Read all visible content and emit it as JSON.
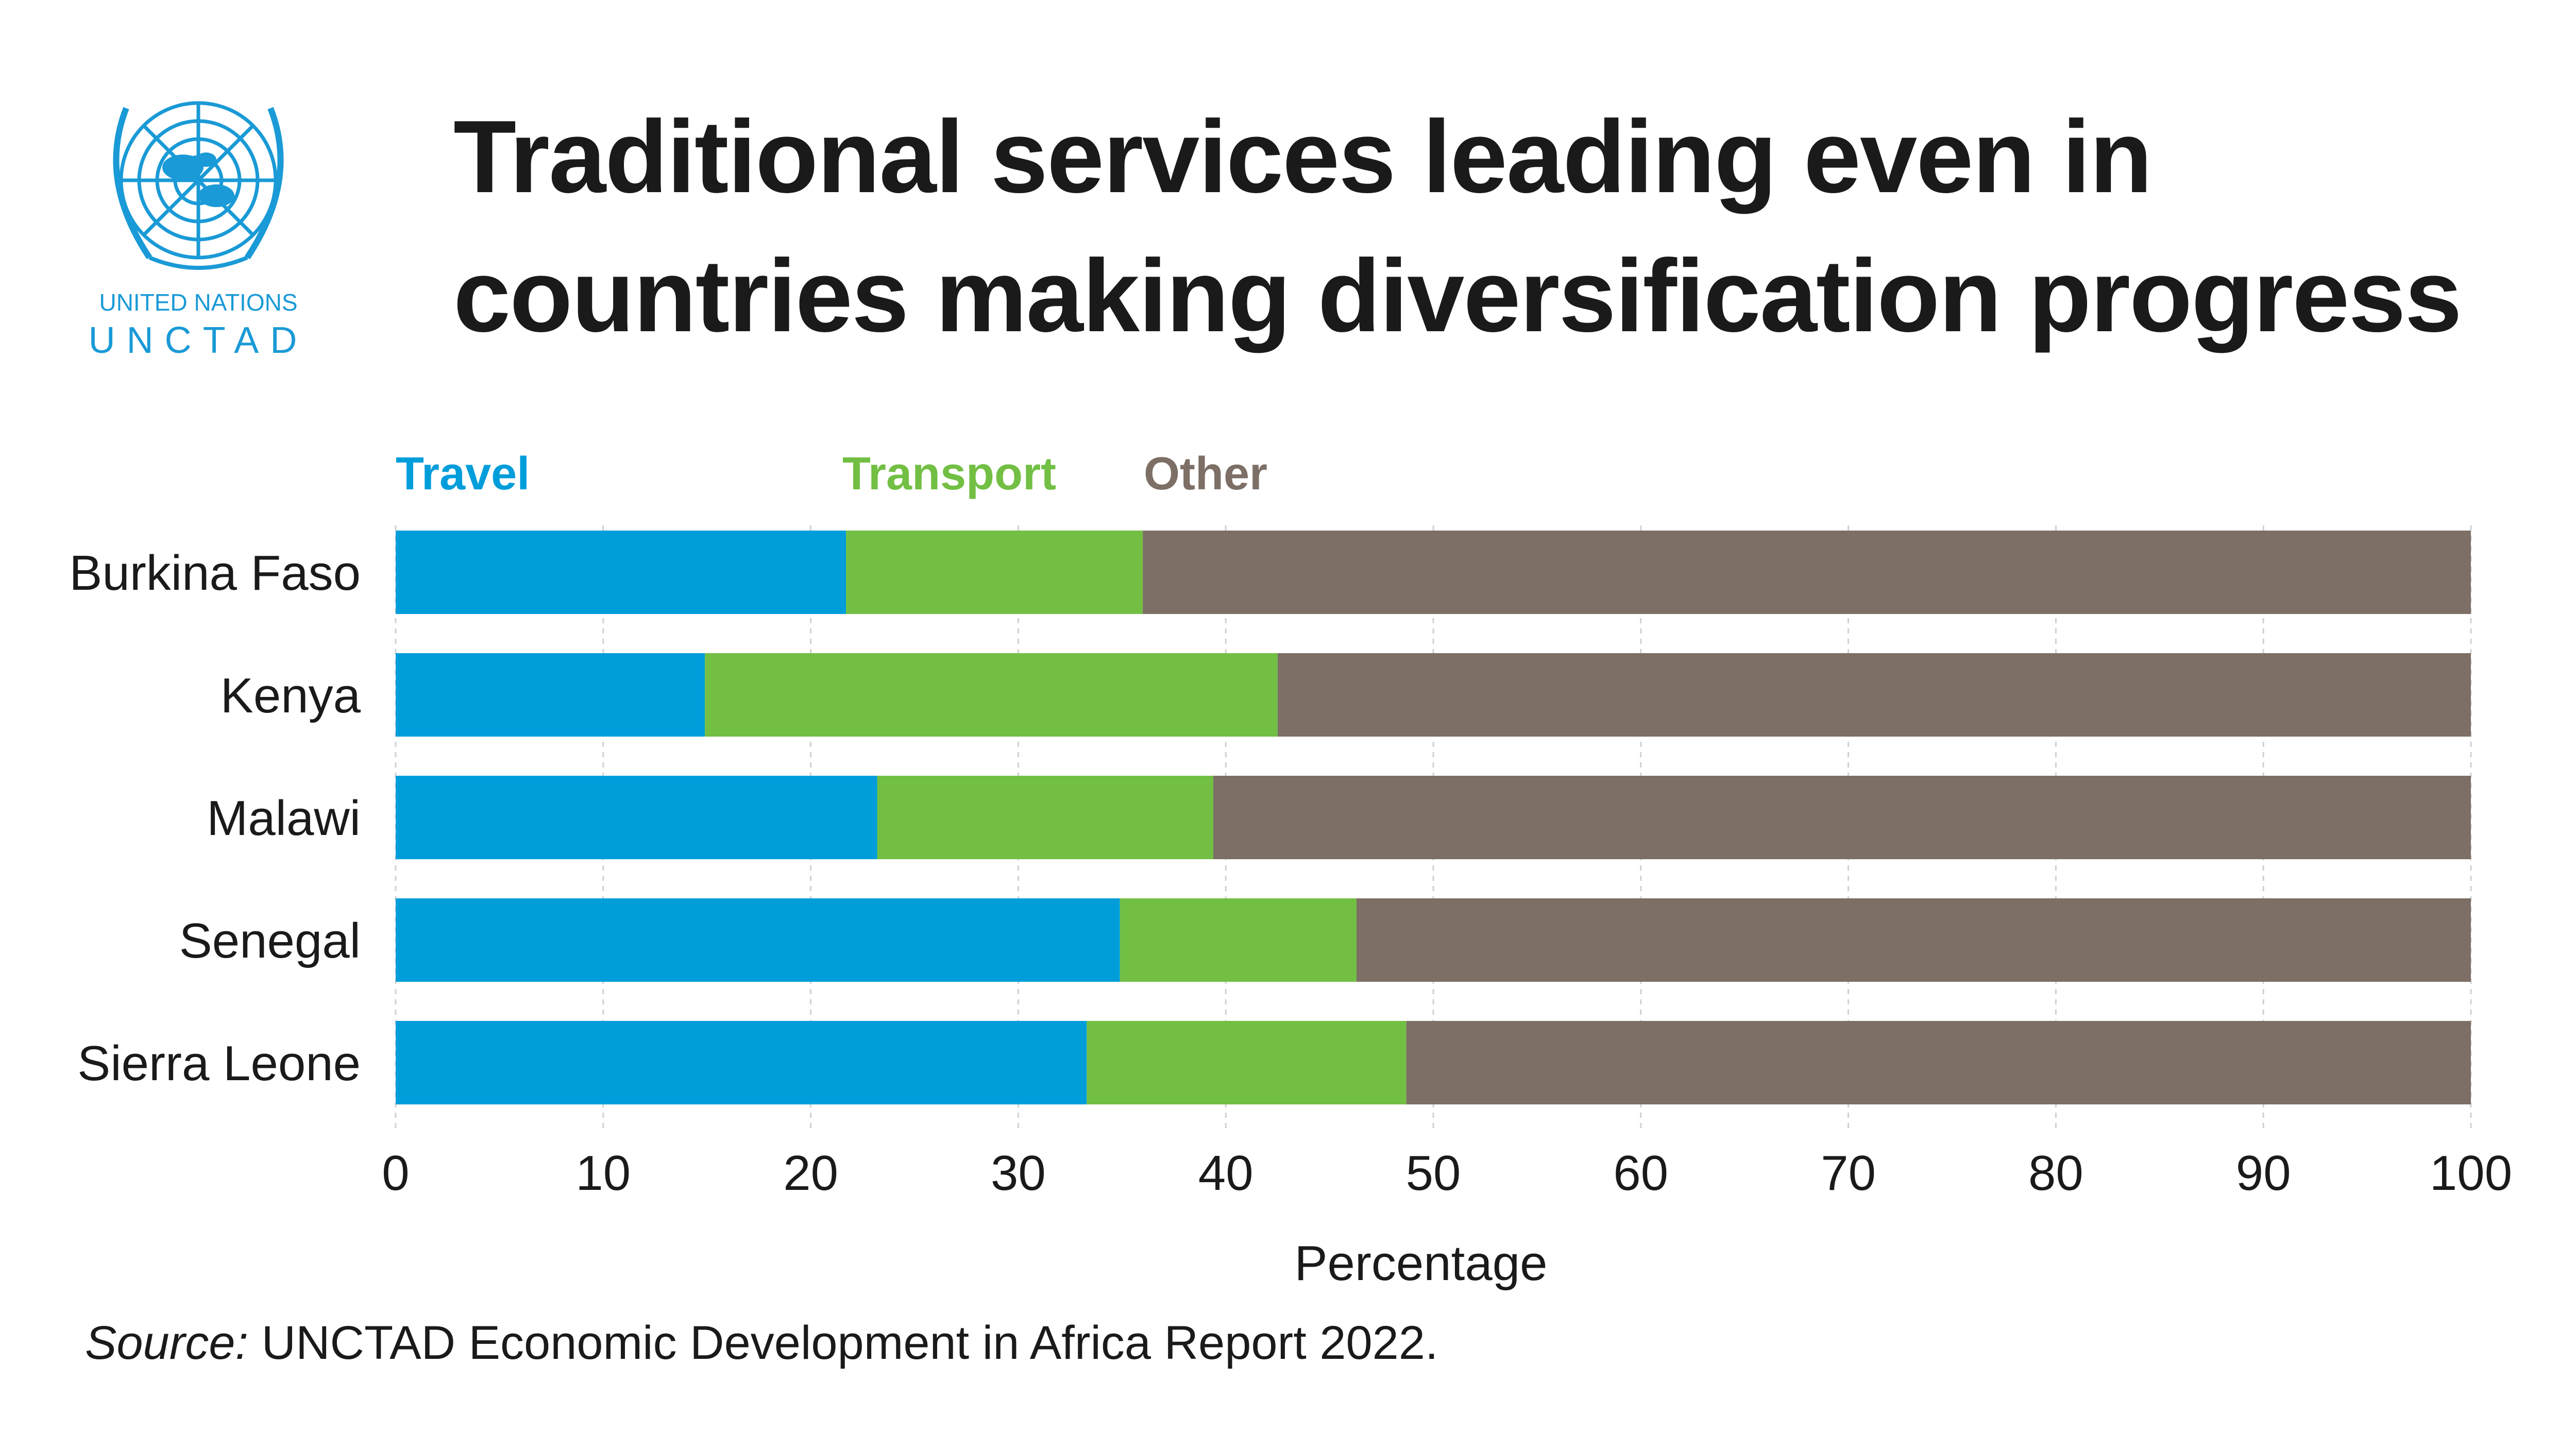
{
  "logo": {
    "name": "UNITED NATIONS",
    "org": "UNCTAD",
    "icon": "un-emblem-icon"
  },
  "title": {
    "line1": "Traditional services leading even in",
    "line2": "countries making diversification progress"
  },
  "source": {
    "label": "Source:",
    "text": " UNCTAD Economic Development in Africa Report 2022."
  },
  "colors": {
    "travel": "#009ddb",
    "transport": "#72bf44",
    "other": "#7d6f66",
    "brand": "#1a9ad6"
  },
  "chart_data": {
    "type": "bar",
    "orientation": "horizontal",
    "stacked": true,
    "categories": [
      "Burkina Faso",
      "Kenya",
      "Malawi",
      "Senegal",
      "Sierra Leone"
    ],
    "series": [
      {
        "name": "Travel",
        "values": [
          21.7,
          14.9,
          23.2,
          34.9,
          33.3
        ]
      },
      {
        "name": "Transport",
        "values": [
          14.3,
          27.6,
          16.2,
          11.4,
          15.4
        ]
      },
      {
        "name": "Other",
        "values": [
          64.0,
          57.5,
          60.6,
          53.7,
          51.3
        ]
      }
    ],
    "xlabel": "Percentage",
    "ylabel": "",
    "xlim": [
      0,
      100
    ],
    "xticks": [
      0,
      10,
      20,
      30,
      40,
      50,
      60,
      70,
      80,
      90,
      100
    ],
    "grid": true,
    "legend": "top"
  }
}
